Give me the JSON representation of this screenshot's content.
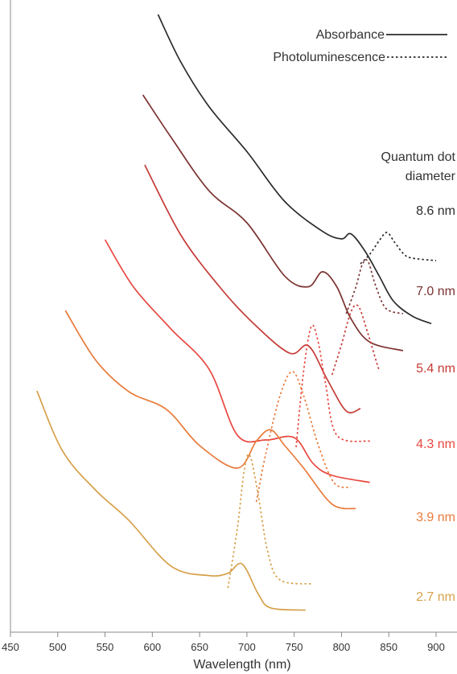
{
  "chart_data": {
    "type": "line",
    "xlabel": "Wavelength (nm)",
    "ylabel": "",
    "xlim": [
      450,
      910
    ],
    "x_ticks": [
      "450",
      "500",
      "550",
      "600",
      "650",
      "700",
      "750",
      "800",
      "850",
      "900"
    ],
    "legend": {
      "position": "top-right",
      "absorbance_label": "Absorbance",
      "pl_label": "Photoluminescence",
      "absorbance_style": "solid",
      "pl_style": "dotted"
    },
    "annotation": {
      "line1": "Quantum dot",
      "line2": "diameter"
    },
    "series": [
      {
        "name": "8.6 nm",
        "color": "#2b2b2b",
        "absorbance": [
          [
            606,
            0.0
          ],
          [
            630,
            0.19
          ],
          [
            660,
            0.37
          ],
          [
            700,
            0.55
          ],
          [
            740,
            0.75
          ],
          [
            780,
            0.87
          ],
          [
            800,
            0.9
          ],
          [
            810,
            0.88
          ],
          [
            825,
            0.95
          ],
          [
            840,
            1.05
          ],
          [
            855,
            1.15
          ],
          [
            875,
            1.21
          ],
          [
            895,
            1.24
          ]
        ],
        "pl": [
          [
            820,
            0.12
          ],
          [
            830,
            0.0
          ],
          [
            840,
            -0.17
          ],
          [
            848,
            -0.27
          ],
          [
            856,
            -0.15
          ],
          [
            866,
            0.0
          ],
          [
            875,
            0.05
          ],
          [
            900,
            0.08
          ]
        ]
      },
      {
        "name": "7.0 nm",
        "color": "#7b3331",
        "absorbance": [
          [
            590,
            0.0
          ],
          [
            620,
            0.2
          ],
          [
            660,
            0.45
          ],
          [
            700,
            0.6
          ],
          [
            740,
            0.85
          ],
          [
            765,
            0.9
          ],
          [
            780,
            0.83
          ],
          [
            795,
            0.9
          ],
          [
            810,
            1.05
          ],
          [
            830,
            1.16
          ],
          [
            865,
            1.2
          ]
        ],
        "pl": [
          [
            805,
            0.6
          ],
          [
            815,
            0.35
          ],
          [
            822,
            0.13
          ],
          [
            828,
            0.1
          ],
          [
            836,
            0.33
          ],
          [
            847,
            0.55
          ],
          [
            865,
            0.6
          ]
        ]
      },
      {
        "name": "5.4 nm",
        "color": "#c53b36",
        "absorbance": [
          [
            592,
            0.0
          ],
          [
            630,
            0.29
          ],
          [
            670,
            0.5
          ],
          [
            705,
            0.65
          ],
          [
            745,
            0.78
          ],
          [
            765,
            0.75
          ],
          [
            785,
            0.89
          ],
          [
            805,
            1.02
          ],
          [
            820,
            1.01
          ]
        ],
        "pl": [
          [
            790,
            0.8
          ],
          [
            800,
            0.58
          ],
          [
            810,
            0.34
          ],
          [
            818,
            0.3
          ],
          [
            828,
            0.5
          ],
          [
            838,
            0.73
          ],
          [
            840,
            0.76
          ]
        ]
      },
      {
        "name": "4.3 nm",
        "color": "#e8473f",
        "absorbance": [
          [
            550,
            0.0
          ],
          [
            580,
            0.2
          ],
          [
            620,
            0.38
          ],
          [
            660,
            0.55
          ],
          [
            690,
            0.83
          ],
          [
            720,
            0.85
          ],
          [
            750,
            0.84
          ],
          [
            770,
            0.95
          ],
          [
            790,
            1.0
          ],
          [
            830,
            1.03
          ]
        ],
        "pl": [
          [
            752,
            0.88
          ],
          [
            760,
            0.5
          ],
          [
            768,
            0.28
          ],
          [
            775,
            0.35
          ],
          [
            783,
            0.56
          ],
          [
            795,
            0.82
          ],
          [
            830,
            0.85
          ]
        ]
      },
      {
        "name": "3.9 nm",
        "color": "#e97b3b",
        "absorbance": [
          [
            508,
            0.0
          ],
          [
            540,
            0.22
          ],
          [
            575,
            0.36
          ],
          [
            615,
            0.44
          ],
          [
            650,
            0.6
          ],
          [
            690,
            0.7
          ],
          [
            710,
            0.58
          ],
          [
            725,
            0.53
          ],
          [
            740,
            0.6
          ],
          [
            760,
            0.7
          ],
          [
            790,
            0.86
          ],
          [
            815,
            0.88
          ]
        ],
        "pl": [
          [
            710,
            0.86
          ],
          [
            720,
            0.66
          ],
          [
            735,
            0.42
          ],
          [
            748,
            0.32
          ],
          [
            760,
            0.42
          ],
          [
            775,
            0.62
          ],
          [
            792,
            0.78
          ],
          [
            810,
            0.8
          ]
        ]
      },
      {
        "name": "2.7 nm",
        "color": "#d6a04a",
        "absorbance": [
          [
            478,
            0.0
          ],
          [
            505,
            0.26
          ],
          [
            540,
            0.43
          ],
          [
            575,
            0.56
          ],
          [
            620,
            0.76
          ],
          [
            660,
            0.8
          ],
          [
            680,
            0.79
          ],
          [
            695,
            0.75
          ],
          [
            712,
            0.88
          ],
          [
            725,
            0.94
          ],
          [
            762,
            0.95
          ]
        ],
        "pl": [
          [
            680,
            0.91
          ],
          [
            690,
            0.76
          ],
          [
            697,
            0.62
          ],
          [
            703,
            0.58
          ],
          [
            712,
            0.68
          ],
          [
            722,
            0.82
          ],
          [
            735,
            0.89
          ],
          [
            770,
            0.9
          ]
        ]
      }
    ]
  }
}
